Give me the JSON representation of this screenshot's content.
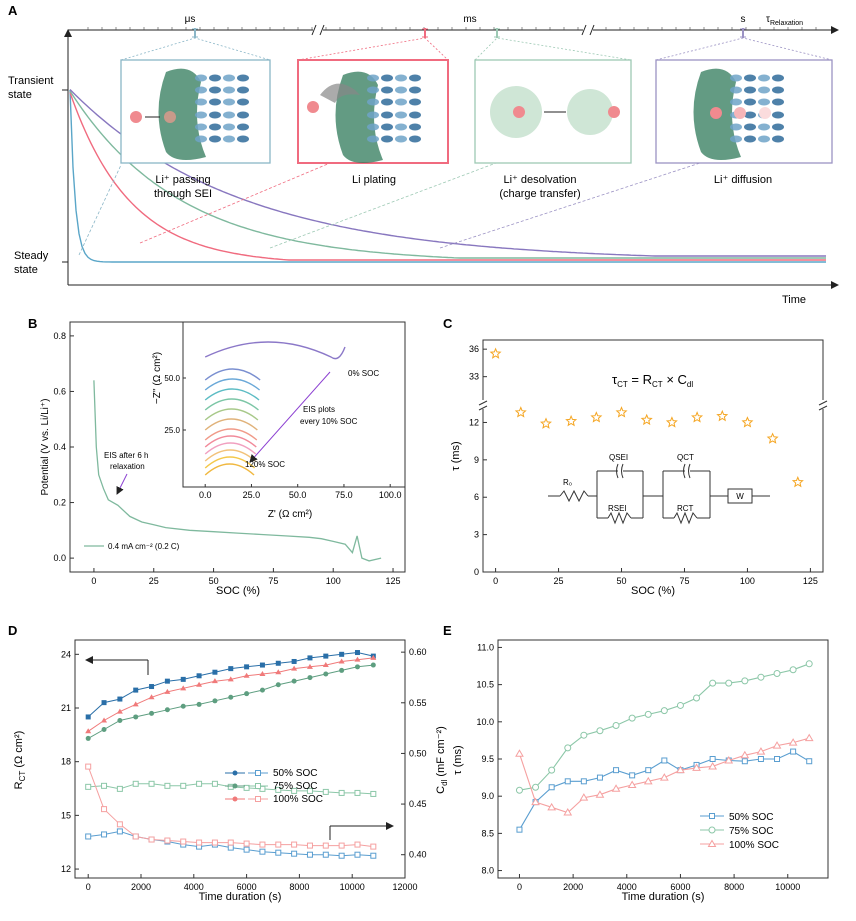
{
  "panelA": {
    "panel_label": "A",
    "scale_labels": [
      "μs",
      "ms",
      "s"
    ],
    "tau_symbol": "τ",
    "tau_sub": "Relaxation",
    "ylabel_top": [
      "Transient",
      "state"
    ],
    "ylabel_bottom": [
      "Steady",
      "state"
    ],
    "xlabel": "Time",
    "insets": [
      {
        "label_lines": [
          "Li⁺ passing",
          "through SEI"
        ],
        "color": "#8ab6c7"
      },
      {
        "label_lines": [
          "Li plating"
        ],
        "color": "#f06b7f"
      },
      {
        "label_lines": [
          "Li⁺ desolvation",
          "(charge transfer)"
        ],
        "color": "#9dc9b4"
      },
      {
        "label_lines": [
          "Li⁺ diffusion"
        ],
        "color": "#9c93c4"
      }
    ],
    "curve_colors": [
      "#5aa6c8",
      "#f06b7f",
      "#7fb99e",
      "#8877bf"
    ]
  },
  "panelB": {
    "panel_label": "B",
    "xlabel": "SOC (%)",
    "ylabel": "Potential (V vs. Li/Li⁺)",
    "annotation_eis": [
      "EIS after 6 h",
      "relaxation"
    ],
    "annotation_current": "0.4 mA cm⁻² (0.2 C)",
    "inset_xlabel": "Z' (Ω cm²)",
    "inset_ylabel": "−Z'' (Ω cm²)",
    "inset_label_0": "0% SOC",
    "inset_label_120": "120% SOC",
    "inset_note": [
      "EIS plots",
      "every 10% SOC"
    ],
    "xticks": [
      "0",
      "25",
      "50",
      "75",
      "100",
      "125"
    ],
    "yticks": [
      "0.0",
      "0.2",
      "0.4",
      "0.6",
      "0.8"
    ],
    "inset_xticks": [
      "0.0",
      "25.0",
      "50.0",
      "75.0",
      "100.0"
    ],
    "inset_yticks": [
      "25.0",
      "50.0"
    ]
  },
  "panelC": {
    "panel_label": "C",
    "xlabel": "SOC (%)",
    "ylabel": "τ (ms)",
    "equation": "τCT = RCT × Cdl",
    "circuit_labels": {
      "r0": "R₀",
      "qsei": "QSEI",
      "rsei": "RSEI",
      "qct": "QCT",
      "rct": "RCT",
      "w": "W"
    },
    "xticks": [
      "0",
      "25",
      "50",
      "75",
      "100",
      "125"
    ],
    "yticks_lower": [
      "0",
      "3",
      "6",
      "9",
      "12"
    ],
    "yticks_upper": [
      "33",
      "36"
    ]
  },
  "panelD": {
    "panel_label": "D",
    "xlabel": "Time duration (s)",
    "ylabel_left": "RCT (Ω cm²)",
    "ylabel_right": "Cdl (mF cm⁻²)",
    "xticks": [
      "0",
      "2000",
      "4000",
      "6000",
      "8000",
      "10000",
      "12000"
    ],
    "yticks_left": [
      "12",
      "15",
      "18",
      "21",
      "24"
    ],
    "yticks_right": [
      "0.40",
      "0.45",
      "0.50",
      "0.55",
      "0.60"
    ],
    "legend": [
      "50% SOC",
      "75% SOC",
      "100% SOC"
    ]
  },
  "panelE": {
    "panel_label": "E",
    "xlabel": "Time duration (s)",
    "ylabel": "τ (ms)",
    "xticks": [
      "0",
      "2000",
      "4000",
      "6000",
      "8000",
      "10000"
    ],
    "yticks": [
      "8.0",
      "8.5",
      "9.0",
      "9.5",
      "10.0",
      "10.5",
      "11.0"
    ],
    "legend": [
      "50% SOC",
      "75% SOC",
      "100% SOC"
    ]
  },
  "chart_data": [
    {
      "type": "line",
      "title": "B",
      "xlabel": "SOC (%)",
      "ylabel": "Potential (V vs. Li/Li+)",
      "xlim": [
        -10,
        130
      ],
      "ylim": [
        -0.05,
        0.85
      ],
      "x": [
        0,
        1,
        2,
        4,
        6,
        8,
        10,
        15,
        20,
        25,
        30,
        40,
        50,
        60,
        70,
        80,
        90,
        95,
        100,
        105,
        108,
        110,
        112,
        115,
        120
      ],
      "series": [
        {
          "name": "Potential",
          "values": [
            0.64,
            0.4,
            0.3,
            0.25,
            0.21,
            0.2,
            0.19,
            0.15,
            0.13,
            0.12,
            0.11,
            0.1,
            0.095,
            0.09,
            0.085,
            0.08,
            0.075,
            0.07,
            0.06,
            0.05,
            0.02,
            0.08,
            0.0,
            -0.01,
            0.0
          ]
        }
      ]
    },
    {
      "type": "scatter",
      "title": "C",
      "xlabel": "SOC (%)",
      "ylabel": "τ (ms)",
      "xlim": [
        -5,
        130
      ],
      "ylim": [
        0,
        37
      ],
      "x": [
        0,
        10,
        20,
        30,
        40,
        50,
        60,
        70,
        80,
        90,
        100,
        110,
        120
      ],
      "series": [
        {
          "name": "τ",
          "values": [
            35.5,
            12.8,
            11.9,
            12.1,
            12.4,
            12.8,
            12.2,
            12.0,
            12.4,
            12.5,
            12.0,
            10.7,
            7.2
          ]
        }
      ]
    },
    {
      "type": "line",
      "title": "D",
      "xlabel": "Time duration (s)",
      "ylabel": "RCT (Ω cm2) / Cdl (mF cm-2)",
      "xlim": [
        -500,
        12000
      ],
      "x": [
        0,
        600,
        1200,
        1800,
        2400,
        3000,
        3600,
        4200,
        4800,
        5400,
        6000,
        6600,
        7200,
        7800,
        8400,
        9000,
        9600,
        10200,
        10800
      ],
      "series": [
        {
          "name": "RCT 50% SOC",
          "axis": "left",
          "values": [
            20.5,
            21.3,
            21.5,
            22.0,
            22.2,
            22.5,
            22.6,
            22.8,
            23.0,
            23.2,
            23.3,
            23.4,
            23.5,
            23.6,
            23.8,
            23.9,
            24.0,
            24.1,
            23.9
          ]
        },
        {
          "name": "RCT 75% SOC",
          "axis": "left",
          "values": [
            19.3,
            19.8,
            20.3,
            20.5,
            20.7,
            20.9,
            21.1,
            21.2,
            21.4,
            21.6,
            21.8,
            22.0,
            22.3,
            22.5,
            22.7,
            22.9,
            23.1,
            23.3,
            23.4
          ]
        },
        {
          "name": "RCT 100% SOC",
          "axis": "left",
          "values": [
            19.7,
            20.3,
            20.8,
            21.2,
            21.6,
            21.9,
            22.1,
            22.3,
            22.5,
            22.6,
            22.8,
            22.9,
            23.0,
            23.2,
            23.3,
            23.4,
            23.6,
            23.7,
            23.8
          ]
        },
        {
          "name": "Cdl 50% SOC",
          "axis": "right",
          "values": [
            0.418,
            0.42,
            0.423,
            0.418,
            0.415,
            0.413,
            0.41,
            0.408,
            0.41,
            0.407,
            0.405,
            0.403,
            0.402,
            0.401,
            0.4,
            0.4,
            0.399,
            0.4,
            0.399
          ]
        },
        {
          "name": "Cdl 75% SOC",
          "axis": "right",
          "values": [
            0.467,
            0.468,
            0.465,
            0.47,
            0.47,
            0.468,
            0.468,
            0.47,
            0.47,
            0.467,
            0.466,
            0.465,
            0.464,
            0.463,
            0.463,
            0.462,
            0.461,
            0.461,
            0.46
          ]
        },
        {
          "name": "Cdl 100% SOC",
          "axis": "right",
          "values": [
            0.487,
            0.445,
            0.43,
            0.418,
            0.415,
            0.414,
            0.413,
            0.412,
            0.412,
            0.412,
            0.411,
            0.41,
            0.41,
            0.41,
            0.409,
            0.409,
            0.409,
            0.41,
            0.408
          ]
        }
      ]
    },
    {
      "type": "line",
      "title": "E",
      "xlabel": "Time duration (s)",
      "ylabel": "τ (ms)",
      "xlim": [
        -800,
        11500
      ],
      "ylim": [
        7.9,
        11.1
      ],
      "x": [
        0,
        600,
        1200,
        1800,
        2400,
        3000,
        3600,
        4200,
        4800,
        5400,
        6000,
        6600,
        7200,
        7800,
        8400,
        9000,
        9600,
        10200,
        10800
      ],
      "series": [
        {
          "name": "50% SOC",
          "values": [
            8.55,
            8.92,
            9.12,
            9.2,
            9.2,
            9.25,
            9.35,
            9.28,
            9.35,
            9.48,
            9.35,
            9.42,
            9.5,
            9.48,
            9.47,
            9.5,
            9.5,
            9.6,
            9.47
          ]
        },
        {
          "name": "75% SOC",
          "values": [
            9.08,
            9.12,
            9.35,
            9.65,
            9.82,
            9.88,
            9.95,
            10.05,
            10.1,
            10.15,
            10.22,
            10.32,
            10.52,
            10.52,
            10.55,
            10.6,
            10.65,
            10.7,
            10.78
          ]
        },
        {
          "name": "100% SOC",
          "values": [
            9.57,
            8.92,
            8.85,
            8.78,
            8.98,
            9.02,
            9.1,
            9.15,
            9.2,
            9.25,
            9.35,
            9.38,
            9.4,
            9.48,
            9.55,
            9.6,
            9.68,
            9.72,
            9.78
          ]
        }
      ]
    }
  ]
}
